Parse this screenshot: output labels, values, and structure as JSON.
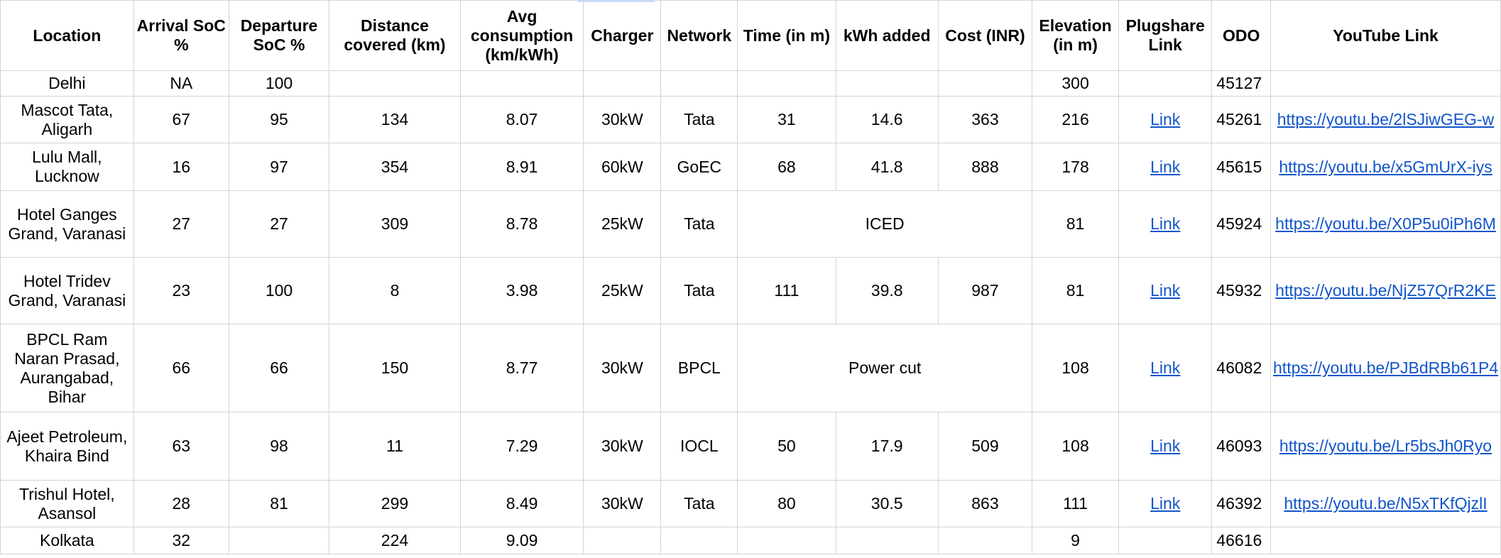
{
  "headers": {
    "location": "Location",
    "arrival_soc": "Arrival SoC %",
    "departure_soc": "Departure SoC %",
    "distance": "Distance covered (km)",
    "avg_consumption": "Avg consumption (km/kWh)",
    "charger": "Charger",
    "network": "Network",
    "time": "Time (in m)",
    "kwh_added": "kWh added",
    "cost": "Cost (INR)",
    "elevation": "Elevation (in m)",
    "plugshare": "Plugshare Link",
    "odo": "ODO",
    "youtube": "YouTube Link"
  },
  "rows": [
    {
      "location": "Delhi",
      "arrival": "NA",
      "departure": "100",
      "distance": "",
      "avg": "",
      "charger": "",
      "network": "",
      "time": "",
      "kwh": "",
      "cost": "",
      "elevation": "300",
      "plugshare": "",
      "odo": "45127",
      "youtube": ""
    },
    {
      "location": "Mascot Tata, Aligarh",
      "arrival": "67",
      "departure": "95",
      "distance": "134",
      "avg": "8.07",
      "charger": "30kW",
      "network": "Tata",
      "time": "31",
      "kwh": "14.6",
      "cost": "363",
      "elevation": "216",
      "plugshare": "Link",
      "odo": "45261",
      "youtube": "https://youtu.be/2lSJiwGEG-w"
    },
    {
      "location": "Lulu Mall, Lucknow",
      "arrival": "16",
      "departure": "97",
      "distance": "354",
      "avg": "8.91",
      "charger": "60kW",
      "network": "GoEC",
      "time": "68",
      "kwh": "41.8",
      "cost": "888",
      "elevation": "178",
      "plugshare": "Link",
      "odo": "45615",
      "youtube": "https://youtu.be/x5GmUrX-iys"
    },
    {
      "location": "Hotel Ganges Grand, Varanasi",
      "arrival": "27",
      "departure": "27",
      "distance": "309",
      "avg": "8.78",
      "charger": "25kW",
      "network": "Tata",
      "merged_note": "ICED",
      "elevation": "81",
      "plugshare": "Link",
      "odo": "45924",
      "youtube": "https://youtu.be/X0P5u0iPh6M"
    },
    {
      "location": "Hotel Tridev Grand, Varanasi",
      "arrival": "23",
      "departure": "100",
      "distance": "8",
      "avg": "3.98",
      "charger": "25kW",
      "network": "Tata",
      "time": "111",
      "kwh": "39.8",
      "cost": "987",
      "elevation": "81",
      "plugshare": "Link",
      "odo": "45932",
      "youtube": "https://youtu.be/NjZ57QrR2KE"
    },
    {
      "location": "BPCL Ram Naran Prasad, Aurangabad, Bihar",
      "arrival": "66",
      "departure": "66",
      "distance": "150",
      "avg": "8.77",
      "charger": "30kW",
      "network": "BPCL",
      "merged_note": "Power cut",
      "elevation": "108",
      "plugshare": "Link",
      "odo": "46082",
      "youtube": "https://youtu.be/PJBdRBb61P4"
    },
    {
      "location": "Ajeet Petroleum, Khaira Bind",
      "arrival": "63",
      "departure": "98",
      "distance": "11",
      "avg": "7.29",
      "charger": "30kW",
      "network": "IOCL",
      "time": "50",
      "kwh": "17.9",
      "cost": "509",
      "elevation": "108",
      "plugshare": "Link",
      "odo": "46093",
      "youtube": "https://youtu.be/Lr5bsJh0Ryo"
    },
    {
      "location": "Trishul Hotel, Asansol",
      "arrival": "28",
      "departure": "81",
      "distance": "299",
      "avg": "8.49",
      "charger": "30kW",
      "network": "Tata",
      "time": "80",
      "kwh": "30.5",
      "cost": "863",
      "elevation": "111",
      "plugshare": "Link",
      "odo": "46392",
      "youtube": "https://youtu.be/N5xTKfQjzlI"
    },
    {
      "location": "Kolkata",
      "arrival": "32",
      "departure": "",
      "distance": "224",
      "avg": "9.09",
      "charger": "",
      "network": "",
      "time": "",
      "kwh": "",
      "cost": "",
      "elevation": "9",
      "plugshare": "",
      "odo": "46616",
      "youtube": ""
    }
  ],
  "colors": {
    "link": "#1155cc",
    "gridline": "#d4d4d4",
    "selection_bar": "#c6d9f8"
  }
}
